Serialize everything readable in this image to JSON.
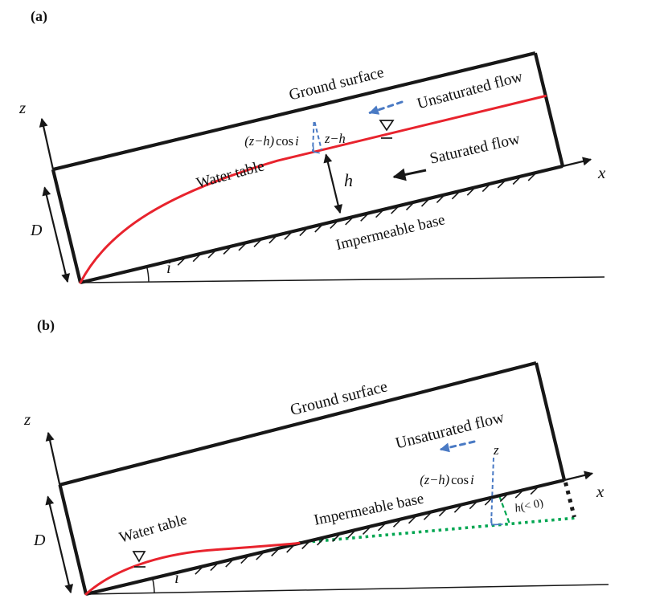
{
  "figure": {
    "description": "Two-panel hillslope aquifer schematic",
    "colors": {
      "ink": "#171717",
      "red": "#e8232d",
      "blue": "#4a7ac4",
      "green": "#00a651"
    }
  },
  "panel_a": {
    "tag": "(a)",
    "z_axis": "z",
    "x_axis": "x",
    "depth": "D",
    "slope_angle": "i",
    "head": "h",
    "ground_surface": "Ground surface",
    "unsaturated_flow": "Unsaturated flow",
    "saturated_flow": "Saturated flow",
    "water_table": "Water table",
    "impermeable_base": "Impermeable base",
    "zh_cos_var": "(z−h)",
    "zh_cos_fn": "cos",
    "zh_cos_arg": "i",
    "z_minus_h": "z−h"
  },
  "panel_b": {
    "tag": "(b)",
    "z_axis": "z",
    "x_axis": "x",
    "depth": "D",
    "slope_angle": "i",
    "ground_surface": "Ground surface",
    "unsaturated_flow": "Unsaturated flow",
    "water_table": "Water table",
    "impermeable_base": "Impermeable base",
    "zh_cos_var": "(z−h)",
    "zh_cos_fn": "cos",
    "zh_cos_arg": "i",
    "z_point": "z",
    "h_neg_var": "h",
    "h_neg_rest": "(< 0)"
  }
}
